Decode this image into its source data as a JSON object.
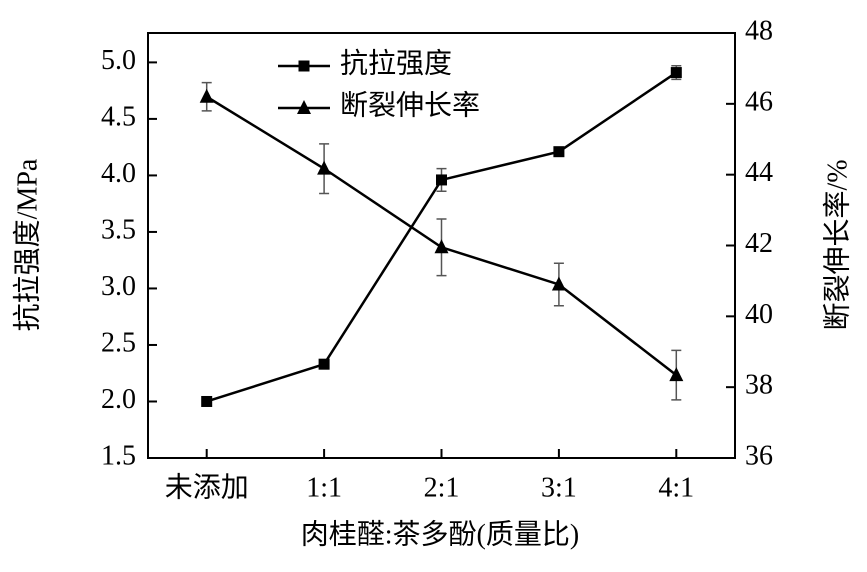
{
  "chart_data": {
    "type": "line",
    "x_label": "肉桂醛:茶多酚(质量比)",
    "y_label": "抗拉强度/MPa",
    "y2_label": "断裂伸长率/%",
    "categories": [
      "未添加",
      "1:1",
      "2:1",
      "3:1",
      "4:1"
    ],
    "series": [
      {
        "name": "抗拉强度",
        "color": "#000000",
        "marker": "square",
        "values": [
          2.0,
          2.33,
          3.96,
          4.21,
          4.91
        ],
        "errors": [
          0.02,
          0.03,
          0.1,
          0.03,
          0.06
        ]
      },
      {
        "name": "断裂伸长率",
        "color": "#000000",
        "marker": "triangle",
        "axis": "y2",
        "values": [
          46.2,
          44.17,
          41.95,
          40.9,
          38.34
        ],
        "errors": [
          0.4,
          0.7,
          0.8,
          0.6,
          0.7
        ]
      }
    ],
    "ylim": [
      1.5,
      5.26
    ],
    "yticks": [
      {
        "value": 1.5,
        "label": "1.5"
      },
      {
        "value": 2,
        "label": "2.0"
      },
      {
        "value": 2.5,
        "label": "2.5"
      },
      {
        "value": 3,
        "label": "3.0"
      },
      {
        "value": 3.5,
        "label": "3.5"
      },
      {
        "value": 4,
        "label": "4.0"
      },
      {
        "value": 4.5,
        "label": "4.5"
      },
      {
        "value": 5,
        "label": "5.0"
      }
    ],
    "y2lim": [
      36,
      48
    ],
    "y2ticks": [
      36,
      38,
      40,
      42,
      44,
      46,
      48
    ],
    "legend": "top-center"
  }
}
